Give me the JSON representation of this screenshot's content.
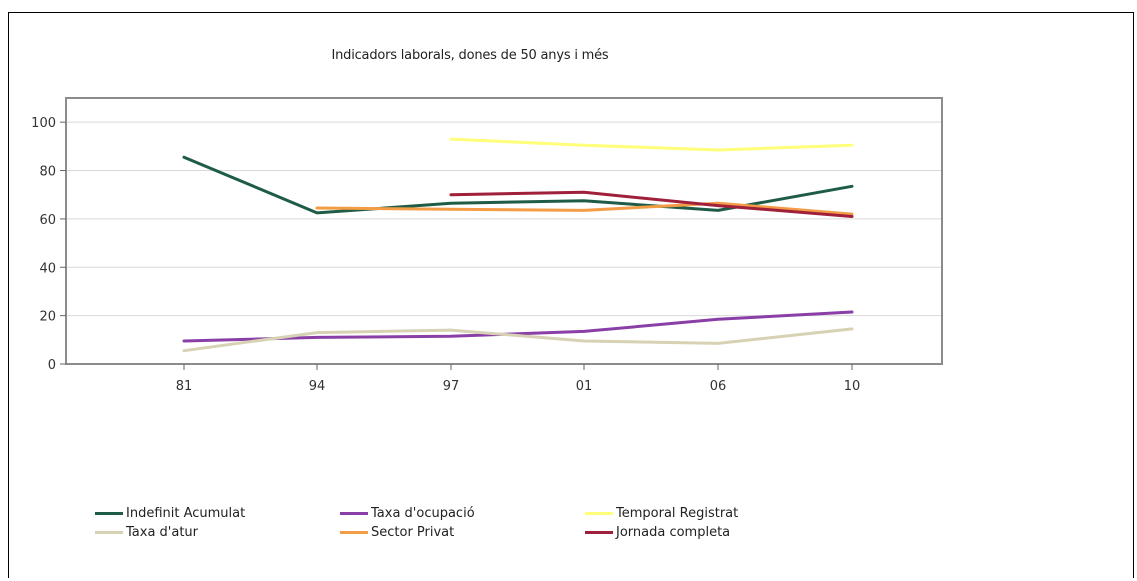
{
  "chart_data": {
    "type": "line",
    "title": "Indicadors laborals, dones de 50 anys i més",
    "categories": [
      "81",
      "94",
      "97",
      "01",
      "06",
      "10"
    ],
    "yticks": [
      0,
      20,
      40,
      60,
      80,
      100
    ],
    "ylim": [
      0,
      110
    ],
    "grid": true,
    "legend_position": "bottom",
    "series": [
      {
        "name": "Indefinit Acumulat",
        "color": "#1f5c46",
        "values": [
          85.5,
          62.5,
          66.5,
          67.5,
          63.5,
          73.5
        ]
      },
      {
        "name": "Taxa d'ocupació",
        "color": "#8a3fa6",
        "values": [
          9.5,
          11,
          11.5,
          13.5,
          18.5,
          21.5
        ]
      },
      {
        "name": "Temporal Registrat",
        "color": "#ffff7a",
        "values": [
          null,
          null,
          93,
          90.5,
          88.5,
          90.5
        ]
      },
      {
        "name": "Taxa d'atur",
        "color": "#d7d2b4",
        "values": [
          5.5,
          13,
          14,
          9.5,
          8.5,
          14.5
        ]
      },
      {
        "name": "Sector Privat",
        "color": "#f39c45",
        "values": [
          null,
          64.5,
          64,
          63.5,
          66.5,
          62
        ]
      },
      {
        "name": "Jornada completa",
        "color": "#a0203c",
        "values": [
          null,
          null,
          70,
          71,
          65.5,
          61
        ]
      }
    ]
  }
}
